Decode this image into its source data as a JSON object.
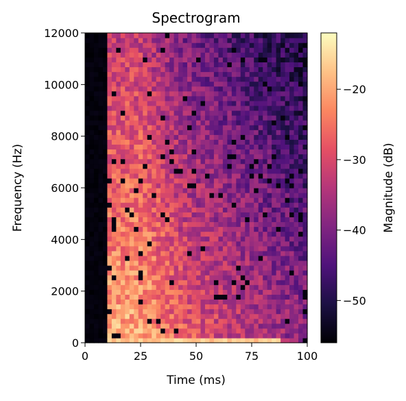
{
  "chart_data": {
    "type": "heatmap",
    "title": "Spectrogram",
    "xlabel": "Time (ms)",
    "ylabel": "Frequency (Hz)",
    "xlim": [
      0,
      100
    ],
    "ylim": [
      0,
      12000
    ],
    "x_ticks": [
      0,
      25,
      50,
      75,
      100
    ],
    "x_tick_labels": [
      "0",
      "25",
      "50",
      "75",
      "100"
    ],
    "y_ticks": [
      0,
      2000,
      4000,
      6000,
      8000,
      10000,
      12000
    ],
    "y_tick_labels": [
      "0",
      "2000",
      "4000",
      "6000",
      "8000",
      "10000",
      "12000"
    ],
    "time_bins": 50,
    "freq_bins": 64,
    "colormap": "magma",
    "colorbar": {
      "label": "Magnitude (dB)",
      "range": [
        -56,
        -12
      ],
      "ticks": [
        -50,
        -40,
        -30,
        -20
      ],
      "tick_labels": [
        "−50",
        "−40",
        "−30",
        "−20"
      ]
    },
    "silence_until_ms": 11,
    "notes_values": "Onset at ~12 ms; strongest energy (about -20 to -15 dB) in the lowest frequency band between ~15-85 ms and around 25 ms across frequencies; energy decays toward higher time and frequency (about -40 to -50 dB), with scattered dark (~-55 dB) dropouts."
  },
  "colors": {
    "magma": [
      "#000004",
      "#1c1044",
      "#4f127b",
      "#812581",
      "#b5367a",
      "#e55064",
      "#fb8761",
      "#fec287",
      "#fcfdbf"
    ]
  }
}
